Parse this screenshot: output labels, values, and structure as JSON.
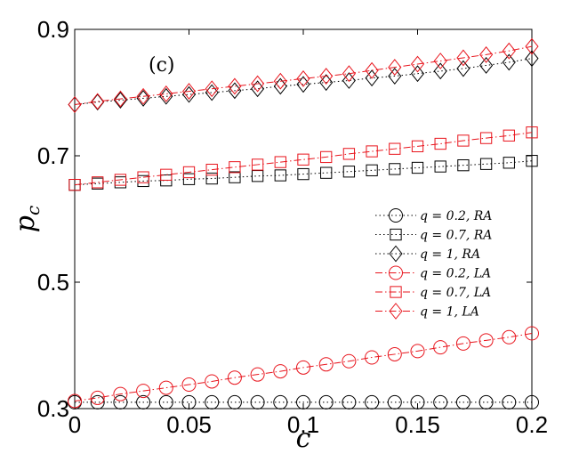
{
  "chart_data": {
    "type": "line",
    "panel_label": "(c)",
    "xlabel": "c",
    "ylabel": "p",
    "ylabel_sub": "c",
    "xlim": [
      0,
      0.2
    ],
    "ylim": [
      0.3,
      0.9
    ],
    "xticks": [
      0,
      0.05,
      0.1,
      0.15,
      0.2
    ],
    "xtick_labels": [
      "0",
      "0.05",
      "0.1",
      "0.15",
      "0.2"
    ],
    "yticks": [
      0.3,
      0.5,
      0.7,
      0.9
    ],
    "ytick_labels": [
      "0.3",
      "0.5",
      "0.7",
      "0.9"
    ],
    "x": [
      0,
      0.01,
      0.02,
      0.03,
      0.04,
      0.05,
      0.06,
      0.07,
      0.08,
      0.09,
      0.1,
      0.11,
      0.12,
      0.13,
      0.14,
      0.15,
      0.16,
      0.17,
      0.18,
      0.19,
      0.2
    ],
    "legend_position": "center-right",
    "series": [
      {
        "name": "q = 0.2, RA",
        "color": "#000000",
        "marker": "circle",
        "line": "dotted",
        "values": [
          0.31,
          0.31,
          0.31,
          0.31,
          0.31,
          0.31,
          0.31,
          0.31,
          0.31,
          0.31,
          0.31,
          0.31,
          0.31,
          0.31,
          0.31,
          0.31,
          0.31,
          0.31,
          0.31,
          0.31,
          0.31
        ]
      },
      {
        "name": "q = 0.7, RA",
        "color": "#000000",
        "marker": "square",
        "line": "dotted",
        "values": [
          0.654,
          0.656,
          0.658,
          0.66,
          0.661,
          0.663,
          0.664,
          0.666,
          0.668,
          0.669,
          0.671,
          0.673,
          0.675,
          0.677,
          0.679,
          0.681,
          0.683,
          0.685,
          0.687,
          0.689,
          0.692
        ]
      },
      {
        "name": "q = 1, RA",
        "color": "#000000",
        "marker": "diamond",
        "line": "dotted",
        "values": [
          0.781,
          0.785,
          0.788,
          0.791,
          0.794,
          0.797,
          0.8,
          0.803,
          0.806,
          0.81,
          0.813,
          0.816,
          0.819,
          0.823,
          0.826,
          0.83,
          0.834,
          0.838,
          0.843,
          0.848,
          0.854
        ]
      },
      {
        "name": "q = 0.2, LA",
        "color": "#e8141c",
        "marker": "circle",
        "line": "dashdot",
        "values": [
          0.312,
          0.317,
          0.323,
          0.328,
          0.333,
          0.338,
          0.343,
          0.349,
          0.354,
          0.359,
          0.365,
          0.37,
          0.375,
          0.381,
          0.386,
          0.391,
          0.397,
          0.403,
          0.408,
          0.413,
          0.419
        ]
      },
      {
        "name": "q = 0.7, LA",
        "color": "#e8141c",
        "marker": "square",
        "line": "dashdot",
        "values": [
          0.654,
          0.658,
          0.662,
          0.666,
          0.67,
          0.674,
          0.678,
          0.682,
          0.686,
          0.69,
          0.694,
          0.698,
          0.703,
          0.707,
          0.711,
          0.715,
          0.719,
          0.724,
          0.728,
          0.732,
          0.737
        ]
      },
      {
        "name": "q = 1, LA",
        "color": "#e8141c",
        "marker": "diamond",
        "line": "dashdot",
        "values": [
          0.781,
          0.786,
          0.79,
          0.794,
          0.798,
          0.802,
          0.806,
          0.81,
          0.814,
          0.818,
          0.822,
          0.826,
          0.83,
          0.835,
          0.84,
          0.845,
          0.85,
          0.855,
          0.86,
          0.866,
          0.873
        ]
      }
    ]
  }
}
